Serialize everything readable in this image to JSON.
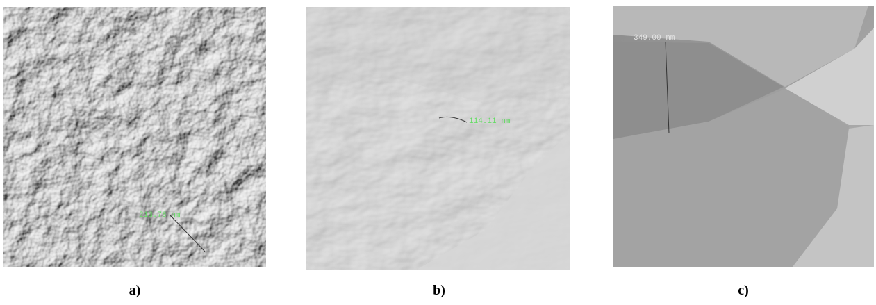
{
  "panels": [
    {
      "label": "a)",
      "annotation": "213.78 nm"
    },
    {
      "label": "b)",
      "annotation": "114.11 nm"
    },
    {
      "label": "c)",
      "annotation": "349.00 nm"
    }
  ]
}
